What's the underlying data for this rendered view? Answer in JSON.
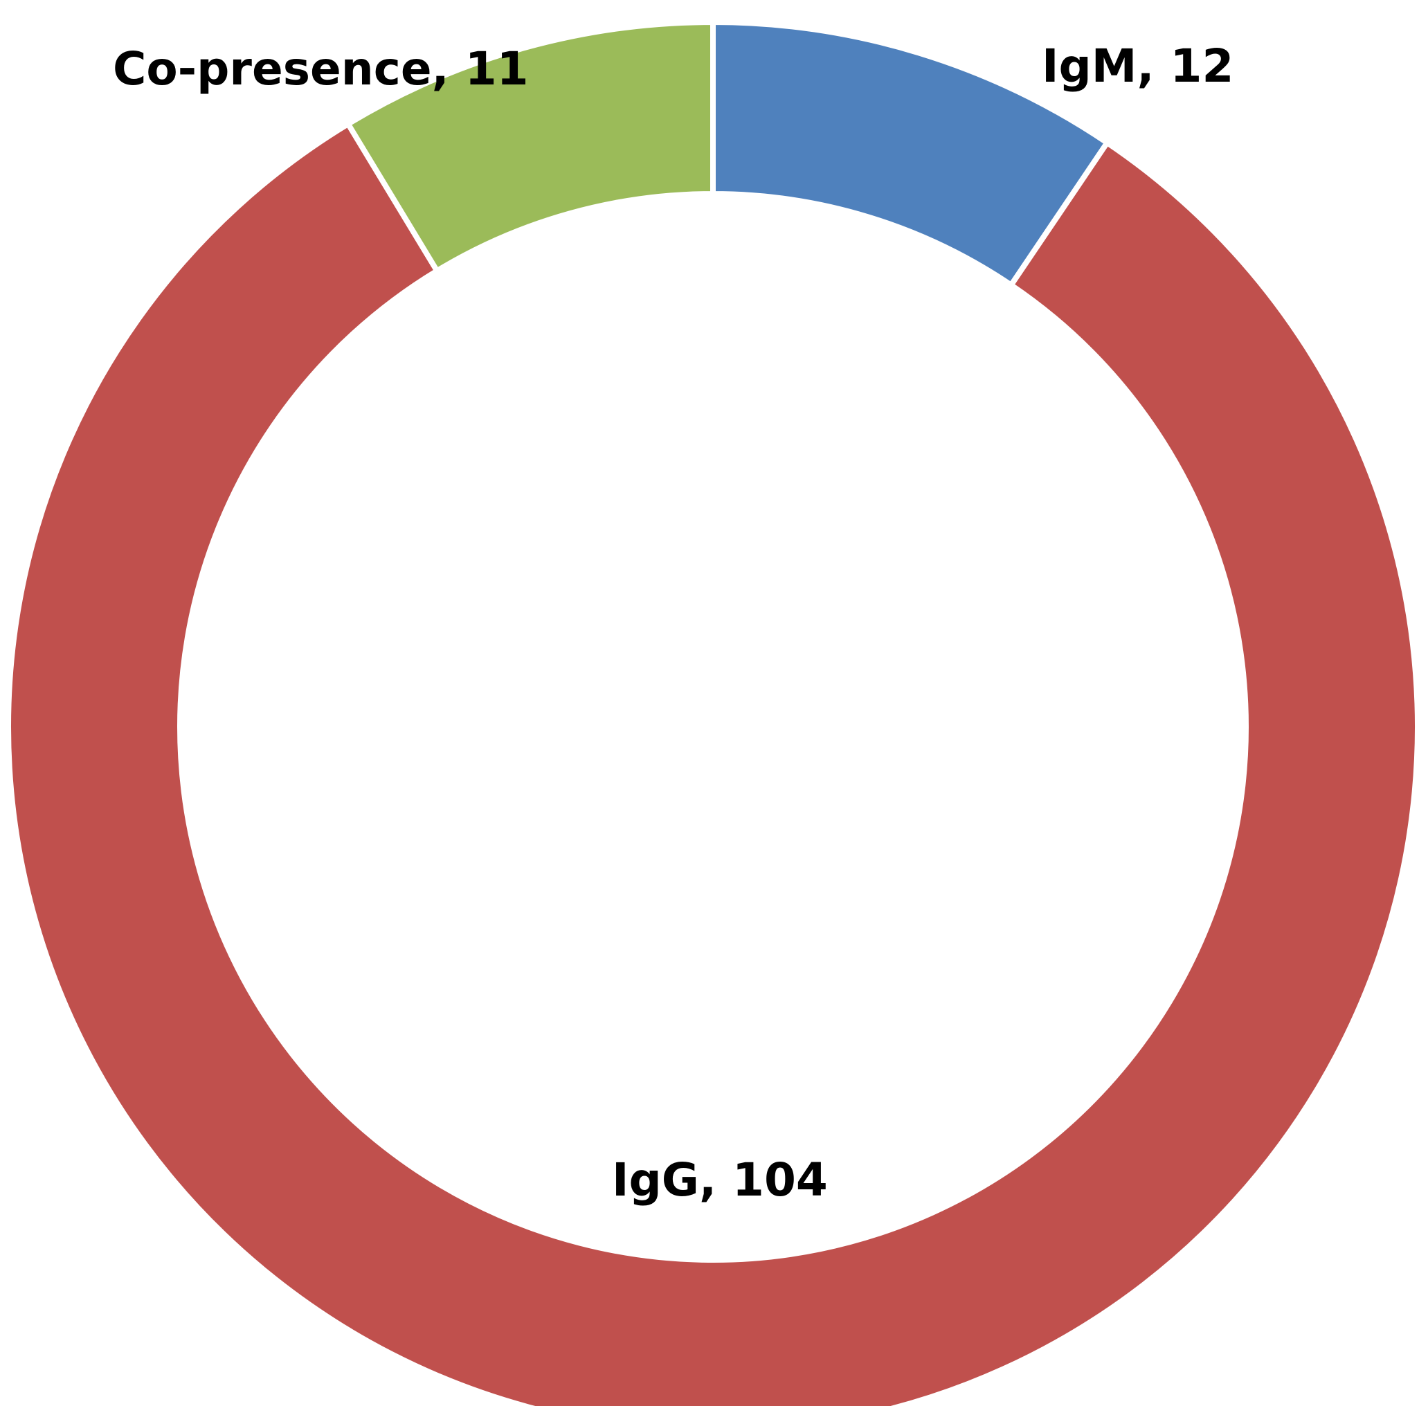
{
  "chart_data": {
    "type": "pie",
    "variant": "donut",
    "title": "",
    "start": "top",
    "direction": "clockwise",
    "slices": [
      {
        "label": "IgM",
        "value": 12,
        "color": "#4F81BD",
        "data_label": "IgM, 12"
      },
      {
        "label": "IgG",
        "value": 104,
        "color": "#C0504D",
        "data_label": "IgG, 104"
      },
      {
        "label": "Co-presence",
        "value": 11,
        "color": "#9BBB59",
        "data_label": "Co-presence, 11"
      }
    ],
    "legend": "none"
  }
}
